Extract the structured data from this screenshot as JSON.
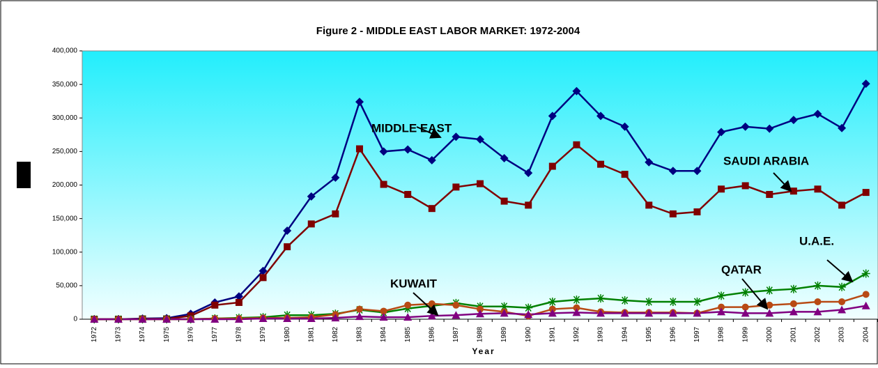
{
  "chart_data": {
    "type": "line",
    "title": "Figure 2 - MIDDLE EAST LABOR MARKET:  1972-2004",
    "x_label": "Year",
    "categories": [
      "1972",
      "1973",
      "1974",
      "1975",
      "1976",
      "1977",
      "1978",
      "1979",
      "1980",
      "1981",
      "1982",
      "1983",
      "1984",
      "1985",
      "1986",
      "1987",
      "1988",
      "1989",
      "1990",
      "1991",
      "1992",
      "1993",
      "1994",
      "1995",
      "1996",
      "1997",
      "1998",
      "1999",
      "2000",
      "2001",
      "2002",
      "2003",
      "2004"
    ],
    "ylim": [
      0,
      400000
    ],
    "yticks": [
      {
        "value": 0,
        "label": "0"
      },
      {
        "value": 50000,
        "label": "50,000"
      },
      {
        "value": 100000,
        "label": "100,000"
      },
      {
        "value": 150000,
        "label": "150,000"
      },
      {
        "value": 200000,
        "label": "200,000"
      },
      {
        "value": 250000,
        "label": "250,000"
      },
      {
        "value": 300000,
        "label": "300,000"
      },
      {
        "value": 350000,
        "label": "350,000"
      },
      {
        "value": 400000,
        "label": "400,000"
      }
    ],
    "series": [
      {
        "name": "MIDDLE EAST",
        "color": "#000080",
        "marker": "diamond",
        "values": [
          0,
          0,
          1000,
          1500,
          8000,
          25000,
          34000,
          72000,
          132000,
          183000,
          211000,
          324000,
          250000,
          253000,
          237000,
          272000,
          268000,
          240000,
          218000,
          303000,
          340000,
          303000,
          287000,
          234000,
          221000,
          221000,
          279000,
          287000,
          284000,
          297000,
          306000,
          285000,
          351000
        ]
      },
      {
        "name": "SAUDI ARABIA",
        "color": "#800000",
        "marker": "square",
        "values": [
          0,
          0,
          500,
          500,
          5000,
          21000,
          25000,
          62000,
          108000,
          142000,
          157000,
          254000,
          201000,
          186000,
          165000,
          197000,
          202000,
          176000,
          170000,
          228000,
          260000,
          231000,
          216000,
          170000,
          157000,
          160000,
          194000,
          199000,
          186000,
          191000,
          194000,
          170000,
          189000
        ]
      },
      {
        "name": "U.A.E.",
        "color": "#008000",
        "marker": "star",
        "values": [
          0,
          0,
          0,
          0,
          0,
          1000,
          2000,
          3000,
          6000,
          6000,
          8000,
          14000,
          10000,
          16000,
          20000,
          24000,
          19000,
          19000,
          17000,
          26000,
          29000,
          31000,
          28000,
          26000,
          26000,
          26000,
          35000,
          40000,
          43000,
          45000,
          50000,
          48000,
          68000
        ]
      },
      {
        "name": "QATAR",
        "color": "#b84a14",
        "marker": "circle",
        "values": [
          0,
          0,
          0,
          0,
          0,
          1000,
          1000,
          2000,
          2000,
          3000,
          7000,
          15000,
          12000,
          21000,
          23000,
          21000,
          15000,
          11000,
          5000,
          15000,
          17000,
          11000,
          10000,
          10000,
          10000,
          9000,
          18000,
          18000,
          21000,
          23000,
          26000,
          26000,
          37000
        ]
      },
      {
        "name": "KUWAIT",
        "color": "#800080",
        "marker": "triangle",
        "values": [
          0,
          0,
          0,
          0,
          0,
          0,
          0,
          1000,
          1000,
          1000,
          2000,
          4000,
          3000,
          3000,
          5000,
          6000,
          8000,
          9000,
          7000,
          9000,
          10000,
          9000,
          9000,
          9000,
          9000,
          9000,
          11000,
          9000,
          9000,
          11000,
          11000,
          14000,
          20000
        ]
      }
    ]
  }
}
